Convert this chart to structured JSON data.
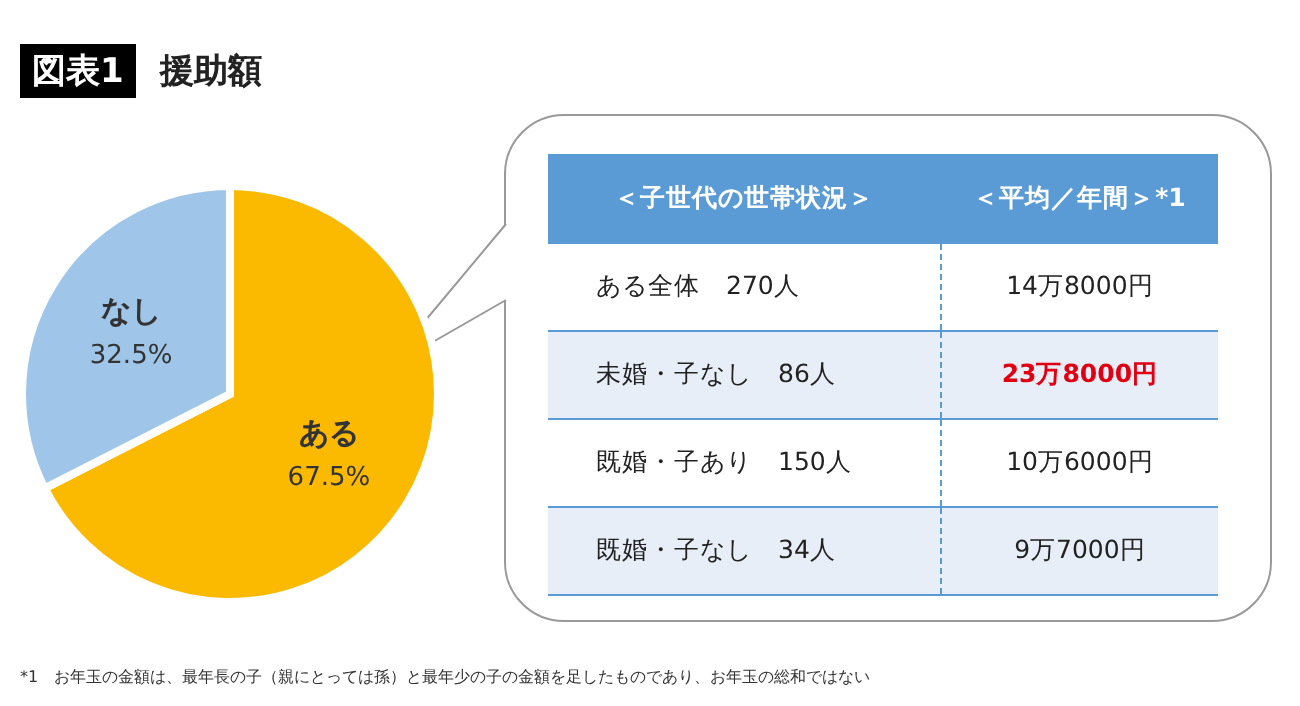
{
  "chart_data": {
    "type": "pie",
    "title": "図表1",
    "subtitle": "援助額",
    "categories": [
      "ある",
      "なし"
    ],
    "values": [
      67.5,
      32.5
    ],
    "colors": [
      "#fbb900",
      "#9fc5e8"
    ],
    "value_labels": [
      "67.5%",
      "32.5%"
    ],
    "legend": false,
    "annotations": [
      "＜子世代の世帯状況＞",
      "＜平均／年間＞*1",
      "ある全体　270人",
      "14万8000円",
      "未婚・子なし　86人",
      "23万8000円",
      "既婚・子あり　150人",
      "10万6000円",
      "既婚・子なし　34人",
      "9万7000円",
      "*1　お年玉の金額は、最年長の子（親にとっては孫）と最年少の子の金額を足したものであり、お年玉の総和ではない"
    ]
  }
}
